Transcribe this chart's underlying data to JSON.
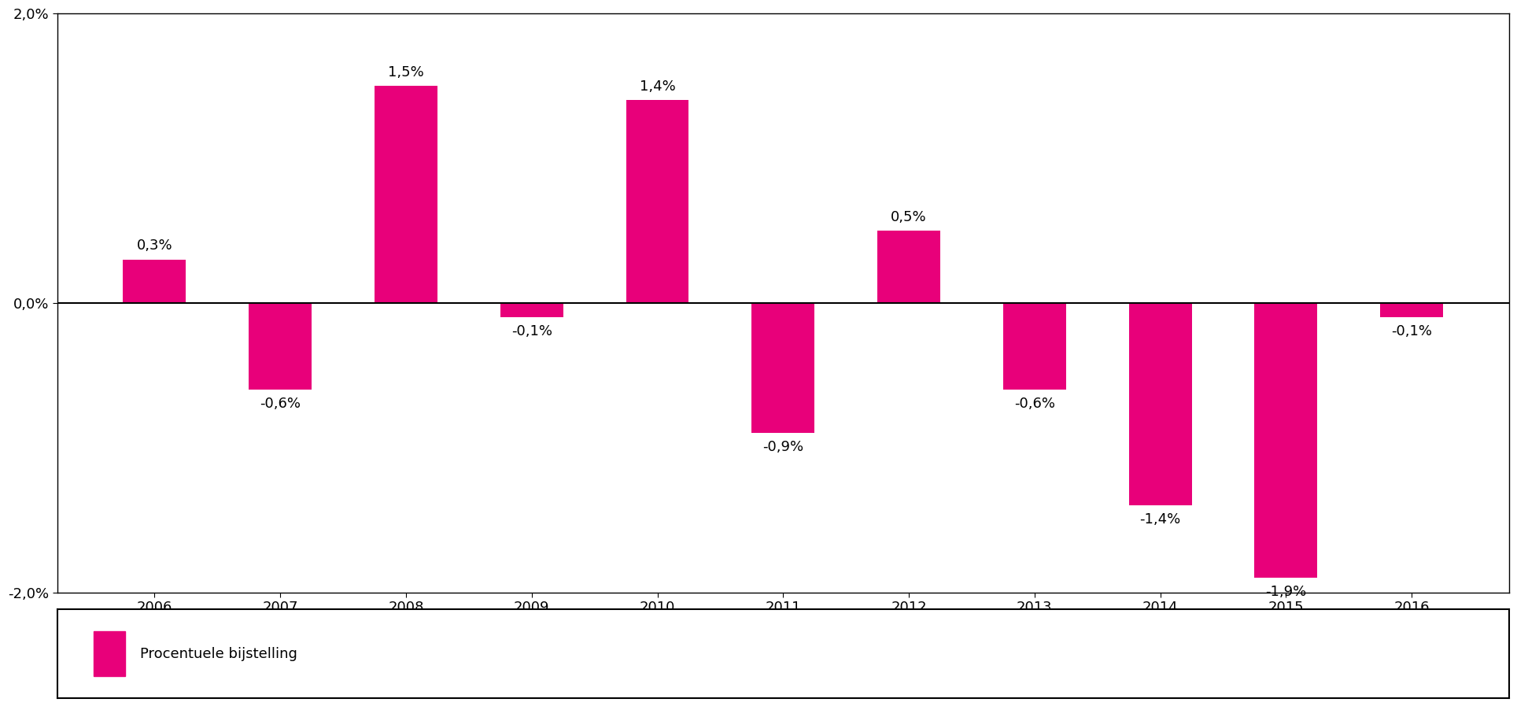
{
  "categories": [
    "2006",
    "2007",
    "2008",
    "2009",
    "2010",
    "2011",
    "2012",
    "2013",
    "2014",
    "2015",
    "2016"
  ],
  "values": [
    0.3,
    -0.6,
    1.5,
    -0.1,
    1.4,
    -0.9,
    0.5,
    -0.6,
    -1.4,
    -1.9,
    -0.1
  ],
  "labels": [
    "0,3%",
    "-0,6%",
    "1,5%",
    "-0,1%",
    "1,4%",
    "-0,9%",
    "0,5%",
    "-0,6%",
    "-1,4%",
    "-1,9%",
    "-0,1%"
  ],
  "bar_color": "#E8007A",
  "ylim": [
    -2.0,
    2.0
  ],
  "ytick_vals": [
    -2.0,
    0.0,
    2.0
  ],
  "ytick_labels": [
    "-2,0%",
    "0,0%",
    "2,0%"
  ],
  "legend_label_full": "Procentuele bijstelling",
  "background_color": "#ffffff",
  "label_fontsize": 13,
  "tick_fontsize": 13,
  "bar_width": 0.5
}
